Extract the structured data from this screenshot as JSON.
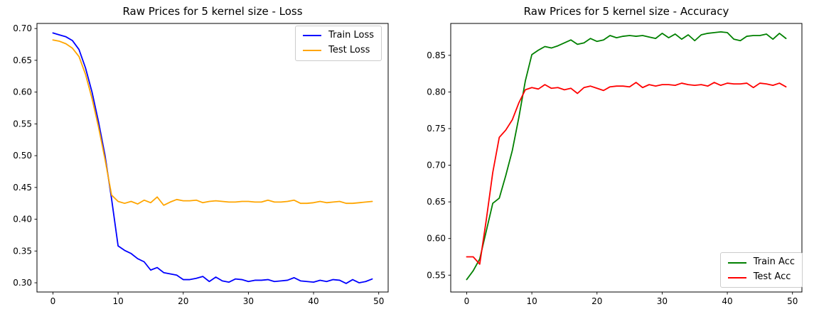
{
  "figure": {
    "background": "#ffffff",
    "text_color": "#000000",
    "axis_color": "#000000",
    "legend_border_color": "#cccccc"
  },
  "chart_data": [
    {
      "type": "line",
      "title": "Raw Prices for 5 kernel size - Loss",
      "xlabel": "",
      "ylabel": "",
      "grid": false,
      "legend_position": "upper-right",
      "xlim": [
        -2.45,
        51.45
      ],
      "ylim": [
        0.2855,
        0.708
      ],
      "xticks": [
        0,
        10,
        20,
        30,
        40,
        50
      ],
      "xtick_labels": [
        "0",
        "10",
        "20",
        "30",
        "40",
        "50"
      ],
      "yticks": [
        0.3,
        0.35,
        0.4,
        0.45,
        0.5,
        0.55,
        0.6,
        0.65,
        0.7
      ],
      "ytick_labels": [
        "0.30",
        "0.35",
        "0.40",
        "0.45",
        "0.50",
        "0.55",
        "0.60",
        "0.65",
        "0.70"
      ],
      "x": [
        0,
        1,
        2,
        3,
        4,
        5,
        6,
        7,
        8,
        9,
        10,
        11,
        12,
        13,
        14,
        15,
        16,
        17,
        18,
        19,
        20,
        21,
        22,
        23,
        24,
        25,
        26,
        27,
        28,
        29,
        30,
        31,
        32,
        33,
        34,
        35,
        36,
        37,
        38,
        39,
        40,
        41,
        42,
        43,
        44,
        45,
        46,
        47,
        48,
        49
      ],
      "series": [
        {
          "name": "Train Loss",
          "color": "#0000ff",
          "values": [
            0.693,
            0.69,
            0.687,
            0.681,
            0.667,
            0.638,
            0.6,
            0.553,
            0.5,
            0.432,
            0.358,
            0.351,
            0.346,
            0.338,
            0.333,
            0.32,
            0.324,
            0.316,
            0.314,
            0.312,
            0.305,
            0.305,
            0.307,
            0.31,
            0.302,
            0.309,
            0.303,
            0.301,
            0.306,
            0.305,
            0.302,
            0.304,
            0.304,
            0.305,
            0.302,
            0.303,
            0.304,
            0.308,
            0.303,
            0.302,
            0.301,
            0.304,
            0.302,
            0.305,
            0.304,
            0.299,
            0.305,
            0.3,
            0.302,
            0.306
          ]
        },
        {
          "name": "Test Loss",
          "color": "#ffa500",
          "values": [
            0.682,
            0.68,
            0.676,
            0.669,
            0.656,
            0.628,
            0.59,
            0.545,
            0.494,
            0.438,
            0.428,
            0.425,
            0.428,
            0.424,
            0.43,
            0.426,
            0.435,
            0.422,
            0.427,
            0.431,
            0.429,
            0.429,
            0.43,
            0.426,
            0.428,
            0.429,
            0.428,
            0.427,
            0.427,
            0.428,
            0.428,
            0.427,
            0.427,
            0.43,
            0.427,
            0.427,
            0.428,
            0.43,
            0.425,
            0.425,
            0.426,
            0.428,
            0.426,
            0.427,
            0.428,
            0.425,
            0.425,
            0.426,
            0.427,
            0.428
          ]
        }
      ]
    },
    {
      "type": "line",
      "title": "Raw Prices for 5 kernel size - Accuracy",
      "xlabel": "",
      "ylabel": "",
      "grid": false,
      "legend_position": "lower-right",
      "xlim": [
        -2.45,
        51.45
      ],
      "ylim": [
        0.527,
        0.8935
      ],
      "xticks": [
        0,
        10,
        20,
        30,
        40,
        50
      ],
      "xtick_labels": [
        "0",
        "10",
        "20",
        "30",
        "40",
        "50"
      ],
      "yticks": [
        0.55,
        0.6,
        0.65,
        0.7,
        0.75,
        0.8,
        0.85
      ],
      "ytick_labels": [
        "0.55",
        "0.60",
        "0.65",
        "0.70",
        "0.75",
        "0.80",
        "0.85"
      ],
      "x": [
        0,
        1,
        2,
        3,
        4,
        5,
        6,
        7,
        8,
        9,
        10,
        11,
        12,
        13,
        14,
        15,
        16,
        17,
        18,
        19,
        20,
        21,
        22,
        23,
        24,
        25,
        26,
        27,
        28,
        29,
        30,
        31,
        32,
        33,
        34,
        35,
        36,
        37,
        38,
        39,
        40,
        41,
        42,
        43,
        44,
        45,
        46,
        47,
        48,
        49
      ],
      "series": [
        {
          "name": "Train Acc",
          "color": "#008000",
          "values": [
            0.544,
            0.556,
            0.572,
            0.61,
            0.648,
            0.655,
            0.686,
            0.72,
            0.765,
            0.815,
            0.851,
            0.857,
            0.862,
            0.86,
            0.863,
            0.867,
            0.871,
            0.865,
            0.867,
            0.873,
            0.869,
            0.871,
            0.877,
            0.874,
            0.876,
            0.877,
            0.876,
            0.877,
            0.875,
            0.873,
            0.88,
            0.874,
            0.879,
            0.872,
            0.878,
            0.87,
            0.878,
            0.88,
            0.881,
            0.882,
            0.881,
            0.872,
            0.87,
            0.876,
            0.877,
            0.877,
            0.879,
            0.872,
            0.88,
            0.873
          ]
        },
        {
          "name": "Test Acc",
          "color": "#ff0000",
          "values": [
            0.575,
            0.575,
            0.565,
            0.625,
            0.69,
            0.738,
            0.748,
            0.762,
            0.785,
            0.803,
            0.806,
            0.804,
            0.81,
            0.805,
            0.806,
            0.803,
            0.805,
            0.798,
            0.806,
            0.808,
            0.805,
            0.802,
            0.807,
            0.808,
            0.808,
            0.807,
            0.813,
            0.806,
            0.81,
            0.808,
            0.81,
            0.81,
            0.809,
            0.812,
            0.81,
            0.809,
            0.81,
            0.808,
            0.813,
            0.809,
            0.812,
            0.811,
            0.811,
            0.812,
            0.806,
            0.812,
            0.811,
            0.809,
            0.812,
            0.807
          ]
        }
      ]
    }
  ]
}
